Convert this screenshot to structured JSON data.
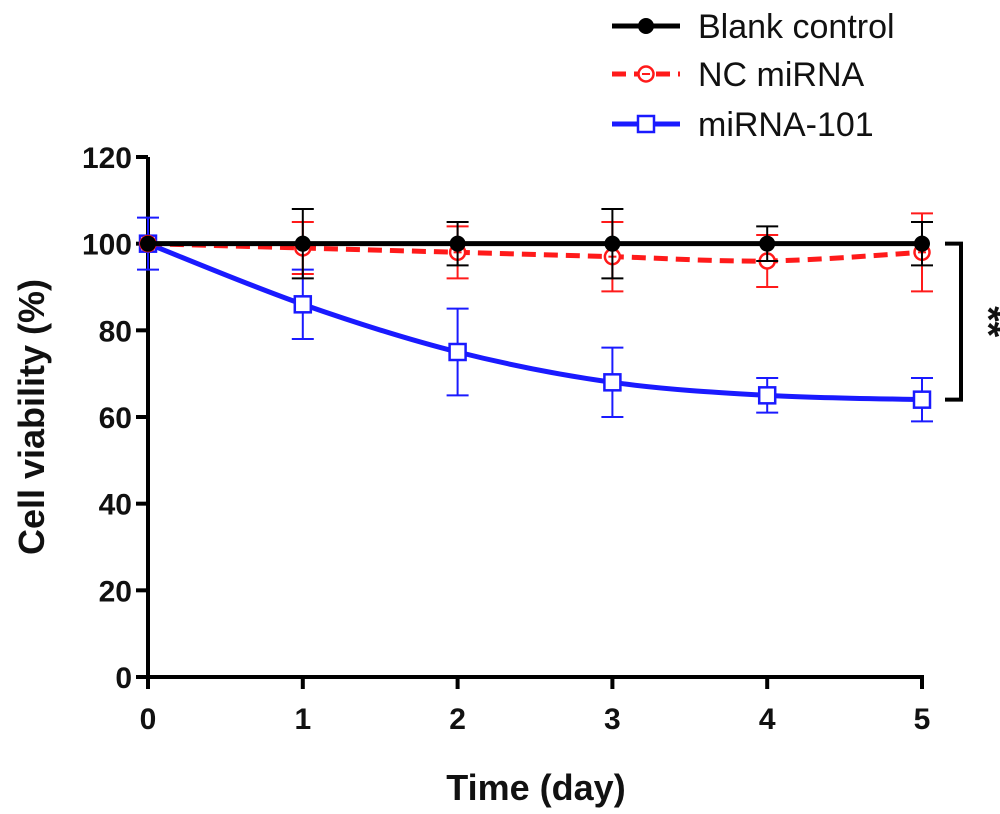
{
  "chart_data": {
    "type": "line",
    "xlabel": "Time (day)",
    "ylabel": "Cell viability (%)",
    "xlim": [
      0,
      5
    ],
    "ylim": [
      0,
      120
    ],
    "x_ticks": [
      "0",
      "1",
      "2",
      "3",
      "4",
      "5"
    ],
    "y_ticks": [
      "0",
      "20",
      "40",
      "60",
      "80",
      "100",
      "120"
    ],
    "x": [
      0,
      1,
      2,
      3,
      4,
      5
    ],
    "grid": false,
    "legend_position": "top-right",
    "series": [
      {
        "name": "Blank control",
        "color": "#000000",
        "line_style": "solid",
        "marker": "filled-circle",
        "values": [
          100,
          100,
          100,
          100,
          100,
          100
        ],
        "error": [
          0,
          8,
          5,
          8,
          4,
          5
        ]
      },
      {
        "name": "NC miRNA",
        "color": "#ff1a1a",
        "line_style": "dashed",
        "marker": "open-circle",
        "values": [
          100,
          99,
          98,
          97,
          96,
          98
        ],
        "error": [
          0,
          6,
          6,
          8,
          6,
          9
        ]
      },
      {
        "name": "miRNA-101",
        "color": "#1a1aff",
        "line_style": "solid",
        "marker": "open-square",
        "values": [
          100,
          86,
          75,
          68,
          65,
          64
        ],
        "error": [
          6,
          8,
          10,
          8,
          4,
          5
        ]
      }
    ],
    "annotation": {
      "text": "**",
      "from_value": 100,
      "to_value": 64
    }
  }
}
